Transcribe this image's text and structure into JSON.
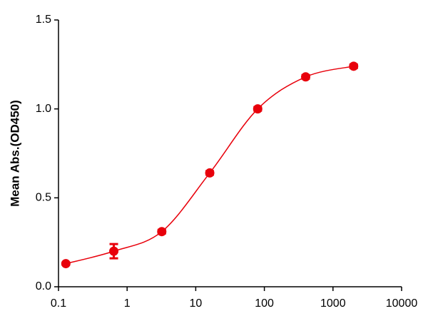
{
  "chart_data": {
    "type": "scatter",
    "y_label": "Mean Abs.(OD450)",
    "x_scale": "log",
    "xlim": [
      0.1,
      10000
    ],
    "xticks": [
      0.1,
      1,
      10,
      100,
      1000,
      10000
    ],
    "ylim": [
      0,
      1.5
    ],
    "yticks": [
      {
        "value": 0,
        "label": "0.0"
      },
      {
        "value": 0.5,
        "label": "0.5"
      },
      {
        "value": 1,
        "label": "1.0"
      },
      {
        "value": 1.5,
        "label": "1.5"
      }
    ],
    "grid": false,
    "fit_curve": true,
    "series": [
      {
        "color": "#e8000b",
        "x": [
          0.128,
          0.64,
          3.2,
          16,
          80,
          400,
          2000
        ],
        "values": [
          0.13,
          0.2,
          0.31,
          0.64,
          1.0,
          1.18,
          1.24
        ],
        "errors": [
          0.005,
          0.04,
          0.01,
          0.01,
          0.01,
          0.01,
          0.01
        ]
      }
    ]
  }
}
